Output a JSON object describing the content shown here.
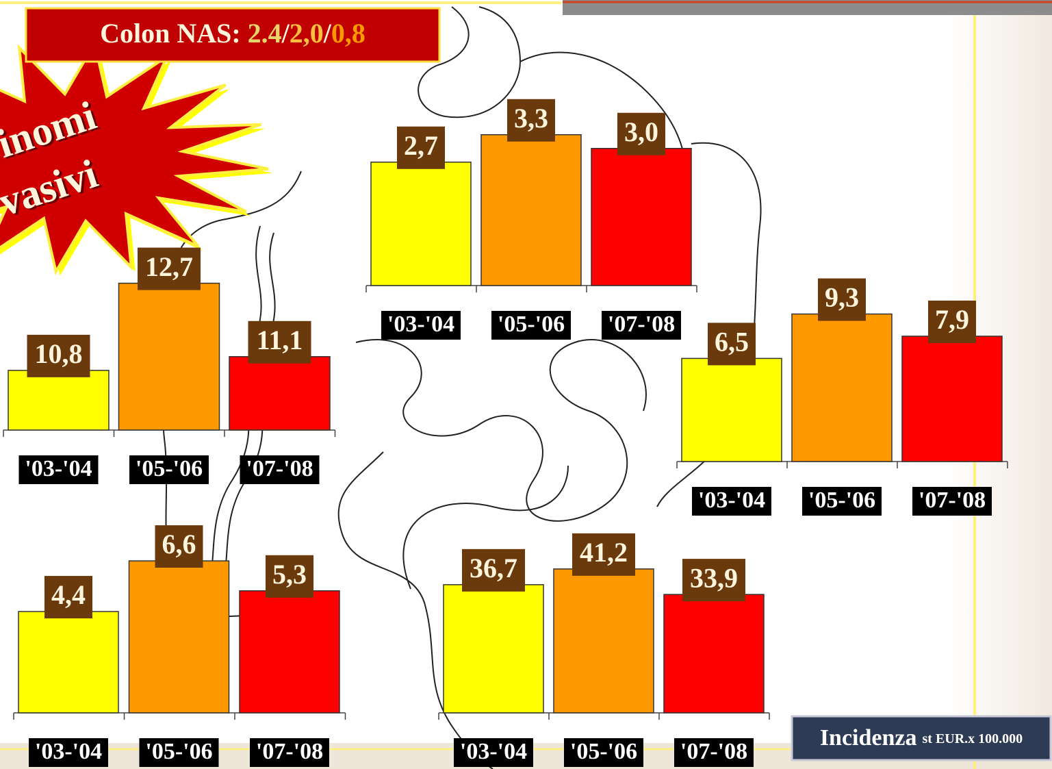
{
  "header": {
    "parts": [
      "Colon NAS: ",
      "2.4",
      "/",
      "2,0",
      "/",
      "0,8"
    ]
  },
  "badge": {
    "lines": [
      "inomi",
      "vasivi"
    ]
  },
  "footer": {
    "main": "Incidenza",
    "note": "st EUR.x 100.000"
  },
  "chart_data": [
    {
      "type": "bar",
      "categories": [
        "'03-'04",
        "'05-'06",
        "'07-'08"
      ],
      "values": [
        10.8,
        12.7,
        11.1
      ],
      "value_labels": [
        "10,8",
        "12,7",
        "11,1"
      ],
      "colors": [
        "#ffff00",
        "#ff9900",
        "#ff0000"
      ],
      "ylim": [
        9.5,
        13.5
      ]
    },
    {
      "type": "bar",
      "categories": [
        "'03-'04",
        "'05-'06",
        "'07-'08"
      ],
      "values": [
        2.7,
        3.3,
        3.0
      ],
      "value_labels": [
        "2,7",
        "3,3",
        "3,0"
      ],
      "colors": [
        "#ffff00",
        "#ff9900",
        "#ff0000"
      ],
      "ylim": [
        0,
        4
      ]
    },
    {
      "type": "bar",
      "categories": [
        "'03-'04",
        "'05-'06",
        "'07-'08"
      ],
      "values": [
        6.5,
        9.3,
        7.9
      ],
      "value_labels": [
        "6,5",
        "9,3",
        "7,9"
      ],
      "colors": [
        "#ffff00",
        "#ff9900",
        "#ff0000"
      ],
      "ylim": [
        0,
        12
      ]
    },
    {
      "type": "bar",
      "categories": [
        "'03-'04",
        "'05-'06",
        "'07-'08"
      ],
      "values": [
        4.4,
        6.6,
        5.3
      ],
      "value_labels": [
        "4,4",
        "6,6",
        "5,3"
      ],
      "colors": [
        "#ffff00",
        "#ff9900",
        "#ff0000"
      ],
      "ylim": [
        0,
        8
      ]
    },
    {
      "type": "bar",
      "categories": [
        "'03-'04",
        "'05-'06",
        "'07-'08"
      ],
      "values": [
        36.7,
        41.2,
        33.9
      ],
      "value_labels": [
        "36,7",
        "41,2",
        "33,9"
      ],
      "colors": [
        "#ffff00",
        "#ff9900",
        "#ff0000"
      ],
      "ylim": [
        0,
        50
      ]
    }
  ]
}
